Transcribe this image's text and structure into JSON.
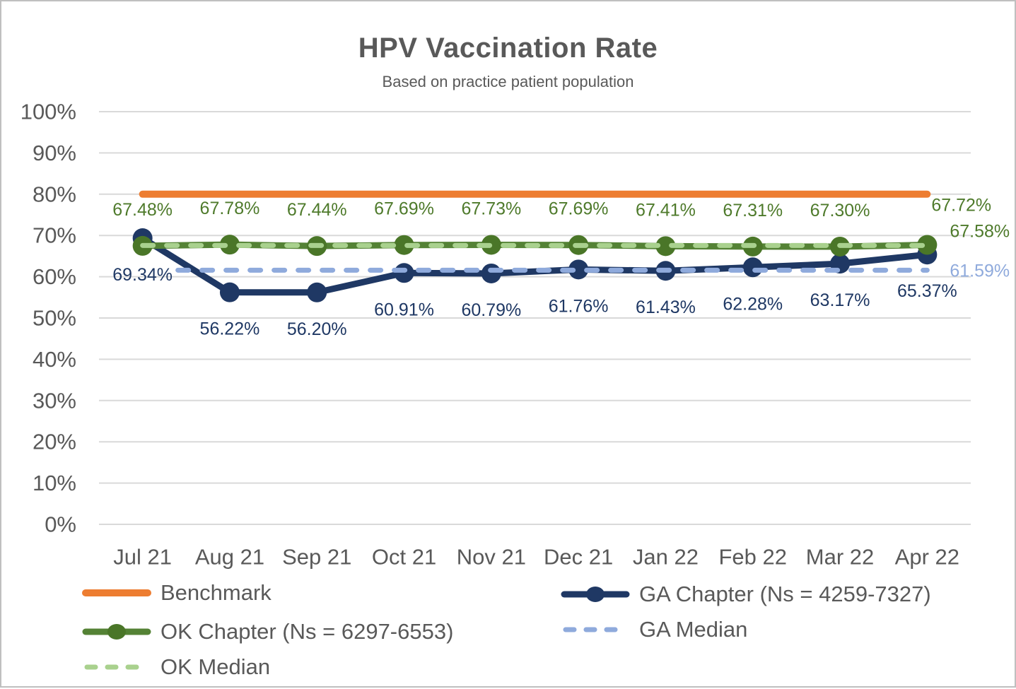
{
  "chart_data": {
    "type": "line",
    "title": "HPV Vaccination Rate",
    "subtitle": "Based on practice patient population",
    "categories": [
      "Jul 21",
      "Aug 21",
      "Sep 21",
      "Oct 21",
      "Nov 21",
      "Dec 21",
      "Jan 22",
      "Feb 22",
      "Mar 22",
      "Apr 22"
    ],
    "y_axis": {
      "min": 0,
      "max": 100,
      "step": 10,
      "ticks": [
        "0%",
        "10%",
        "20%",
        "30%",
        "40%",
        "50%",
        "60%",
        "70%",
        "80%",
        "90%",
        "100%"
      ],
      "format": "percent",
      "grid": true
    },
    "colors": {
      "gridline": "#D9D9D9",
      "axis_text": "#595959",
      "title_text": "#595959",
      "benchmark_orange": "#ED7D31",
      "ga_navy": "#1F3864",
      "ok_green": "#548235",
      "ok_marker_green": "#4A7628",
      "ok_median_light_green": "#A9D18E",
      "ga_median_light_blue": "#8FAADC",
      "green_label_text": "#4E7A2B"
    },
    "series": [
      {
        "id": "benchmark",
        "name": "Benchmark",
        "type": "constant",
        "value": 80,
        "color": "#ED7D31",
        "width": 10,
        "dashed": false
      },
      {
        "id": "ga-chapter",
        "name": "GA Chapter (Ns = 4259-7327)",
        "type": "line",
        "values": [
          69.34,
          56.22,
          56.2,
          60.91,
          60.79,
          61.76,
          61.43,
          62.28,
          63.17,
          65.37
        ],
        "color": "#1F3864",
        "marker_color": "#1F3864",
        "marker_radius": 14,
        "width": 9,
        "labels": {
          "position": "below",
          "offset": 52,
          "color": "#1F3864"
        }
      },
      {
        "id": "ok-chapter",
        "name": "OK Chapter (Ns = 6297-6553)",
        "type": "line",
        "values": [
          67.48,
          67.78,
          67.44,
          67.69,
          67.73,
          67.69,
          67.41,
          67.31,
          67.3,
          67.72
        ],
        "color": "#548235",
        "marker_color": "#4A7628",
        "marker_radius": 14,
        "width": 9,
        "labels": {
          "position": "above",
          "offset": 51,
          "color": "#4E7A2B",
          "last_outside": true,
          "last_dy": -56
        }
      },
      {
        "id": "ga-median",
        "name": "GA Median",
        "type": "constant",
        "value": 61.59,
        "color": "#8FAADC",
        "width": 7,
        "dashed": true,
        "start_offset": 50,
        "end_label": {
          "dx": 32,
          "dy": 1,
          "color": "#8FAADC"
        }
      },
      {
        "id": "ok-median",
        "name": "OK Median",
        "type": "constant",
        "value": 67.58,
        "color": "#A9D18E",
        "width": 7,
        "dashed": true,
        "end_label": {
          "dx": 32,
          "dy": -20,
          "color": "#4E7A2B"
        }
      }
    ],
    "legend": {
      "items": [
        {
          "label": "Benchmark",
          "series": 0,
          "swatch": "solid"
        },
        {
          "label": "GA Chapter (Ns = 4259-7327)",
          "series": 1,
          "swatch": "marker"
        },
        {
          "label": "OK Chapter (Ns = 6297-6553)",
          "series": 2,
          "swatch": "marker"
        },
        {
          "label": "GA Median",
          "series": 3,
          "swatch": "dashed"
        },
        {
          "label": "OK Median",
          "series": 4,
          "swatch": "dashed"
        }
      ]
    }
  }
}
